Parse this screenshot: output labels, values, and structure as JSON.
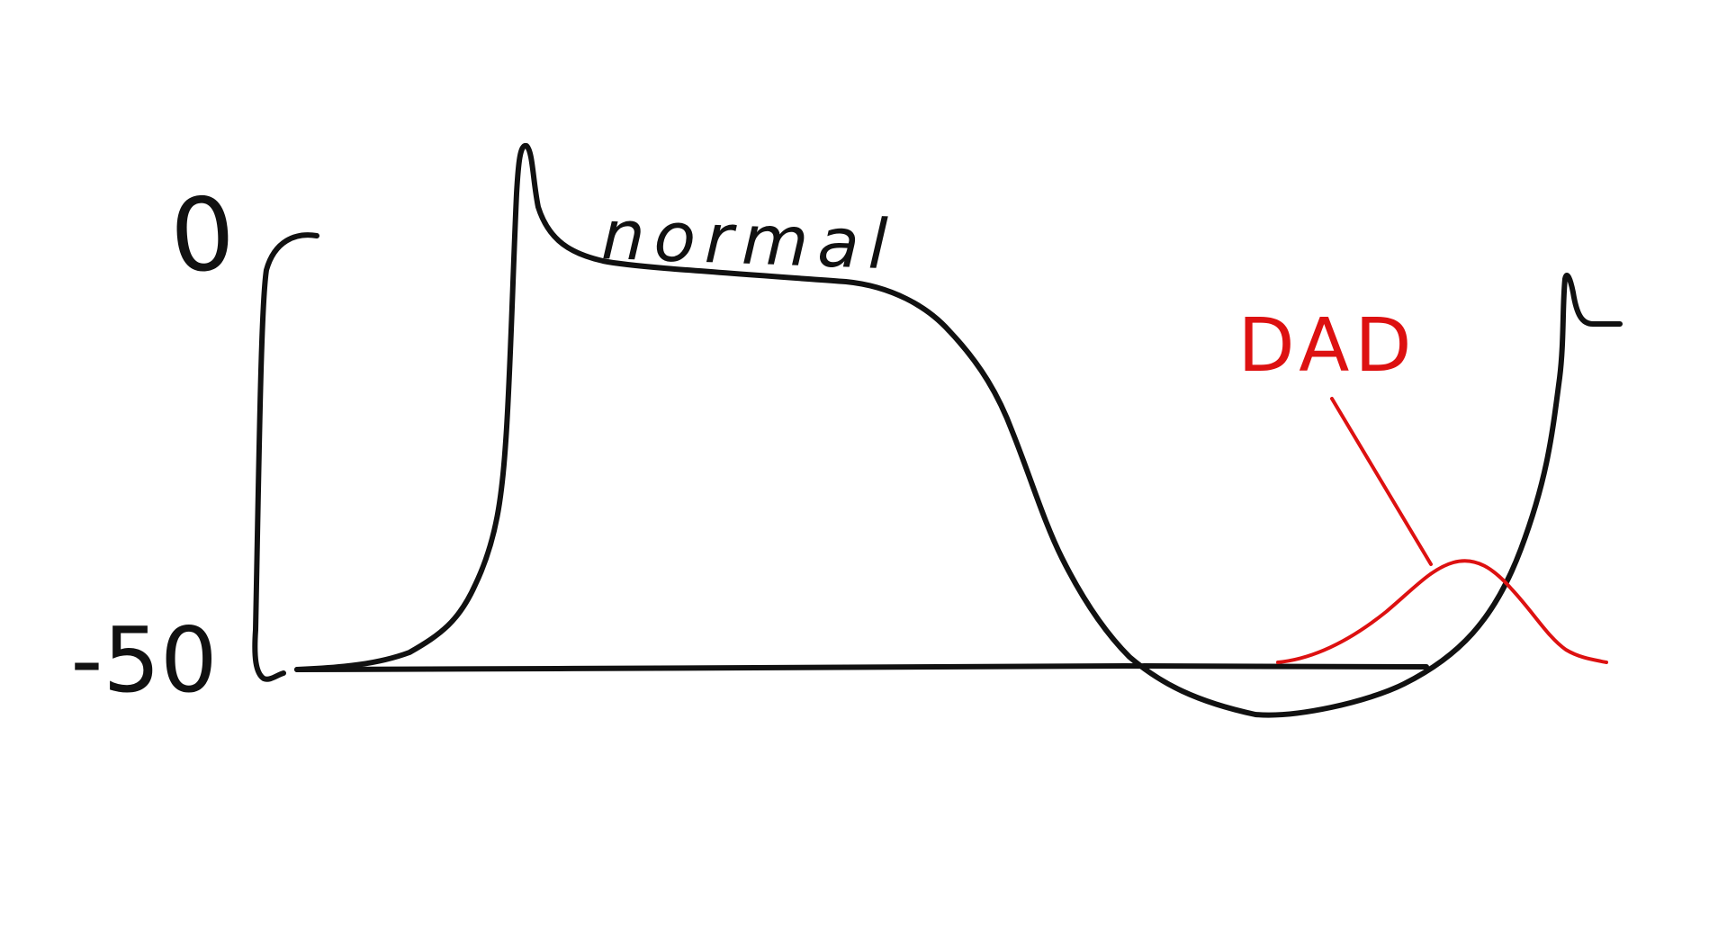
{
  "labels": {
    "y_top": "0",
    "y_bottom": "-50",
    "normal": "normal",
    "dad": "DAD"
  },
  "colors": {
    "ink": "#111111",
    "dad": "#dd1111",
    "background": "#ffffff"
  }
}
